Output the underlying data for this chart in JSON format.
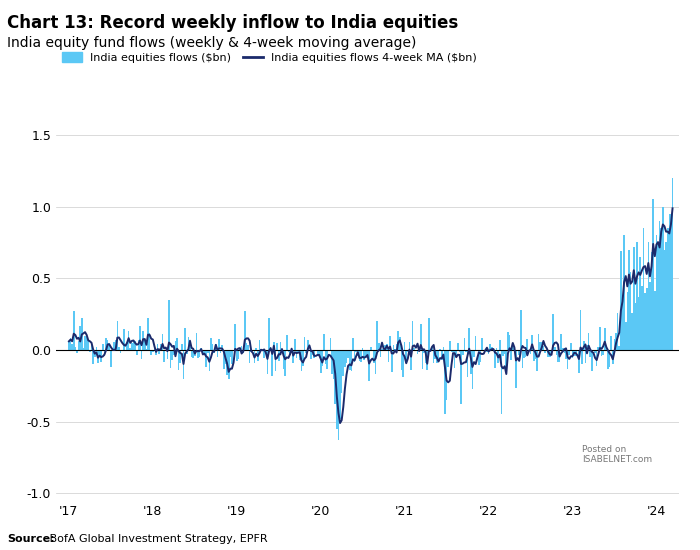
{
  "title": "Chart 13: Record weekly inflow to India equities",
  "subtitle": "India equity fund flows (weekly & 4-week moving average)",
  "source_bold": "Source:",
  "source_rest": " BofA Global Investment Strategy, EPFR",
  "legend1": "India equities flows ($bn)",
  "legend2": "India equities flows 4-week MA ($bn)",
  "bar_color": "#5BC8F5",
  "line_color": "#1B2A6B",
  "ylim": [
    -1.05,
    1.75
  ],
  "yticks": [
    -1.0,
    -0.5,
    0.0,
    0.5,
    1.0,
    1.5
  ],
  "xlabel_ticks": [
    "'17",
    "'18",
    "'19",
    "'20",
    "'21",
    "'22",
    "'23",
    "'24"
  ],
  "background_color": "#FFFFFF",
  "title_fontsize": 12,
  "subtitle_fontsize": 10,
  "axis_fontsize": 9,
  "watermark_text": "Posted on\nISABELNET.com"
}
